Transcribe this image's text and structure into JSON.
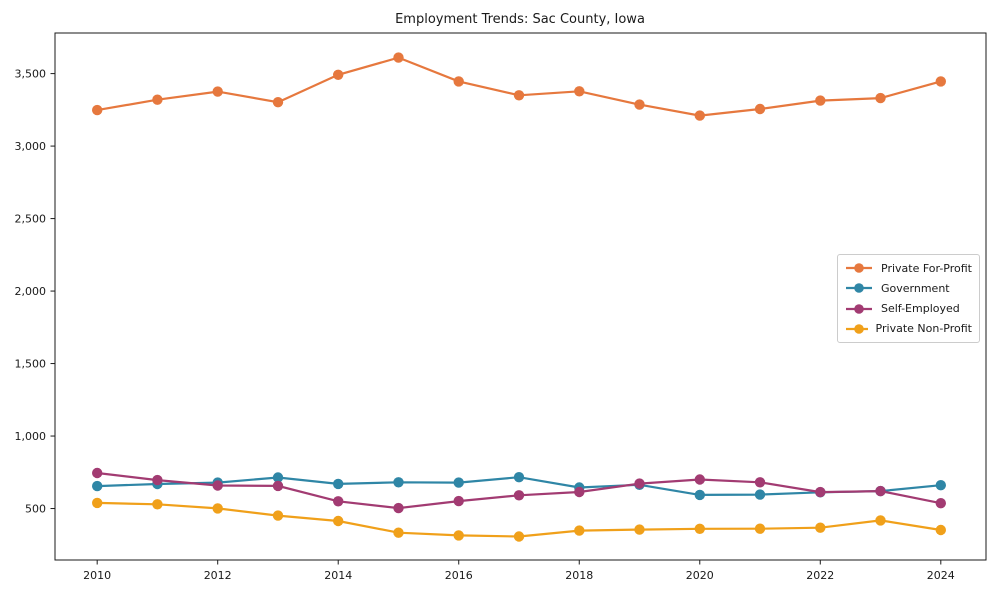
{
  "chart_data": {
    "type": "line",
    "title": "Employment Trends: Sac County, Iowa",
    "xlabel": "",
    "ylabel": "",
    "x": [
      2010,
      2011,
      2012,
      2013,
      2014,
      2015,
      2016,
      2017,
      2018,
      2019,
      2020,
      2021,
      2022,
      2023,
      2024
    ],
    "series": [
      {
        "name": "Private For-Profit",
        "color": "#E6783E",
        "values": [
          3248,
          3320,
          3376,
          3303,
          3492,
          3610,
          3446,
          3350,
          3378,
          3286,
          3210,
          3256,
          3314,
          3331,
          3446
        ]
      },
      {
        "name": "Government",
        "color": "#2F86A6",
        "values": [
          655,
          669,
          679,
          714,
          670,
          681,
          679,
          716,
          645,
          664,
          594,
          596,
          612,
          620,
          661
        ]
      },
      {
        "name": "Self-Employed",
        "color": "#A23B72",
        "values": [
          745,
          696,
          659,
          656,
          550,
          503,
          551,
          591,
          614,
          672,
          700,
          681,
          613,
          620,
          537
        ]
      },
      {
        "name": "Private Non-Profit",
        "color": "#F0A01A",
        "values": [
          539,
          529,
          501,
          451,
          414,
          333,
          315,
          307,
          348,
          355,
          360,
          361,
          368,
          418,
          352
        ]
      }
    ],
    "xticks": [
      2010,
      2012,
      2014,
      2016,
      2018,
      2020,
      2022,
      2024
    ],
    "xtick_labels": [
      "2010",
      "2012",
      "2014",
      "2016",
      "2018",
      "2020",
      "2022",
      "2024"
    ],
    "yticks": [
      500,
      1000,
      1500,
      2000,
      2500,
      3000,
      3500
    ],
    "ytick_labels": [
      "500",
      "1,000",
      "1,500",
      "2,000",
      "2,500",
      "3,000",
      "3,500"
    ],
    "xlim": [
      2009.3,
      2024.75
    ],
    "ylim": [
      145,
      3780
    ],
    "grid": false,
    "marker": "circle",
    "legend_position": "center right",
    "axis_color": "#1a1a1a"
  }
}
